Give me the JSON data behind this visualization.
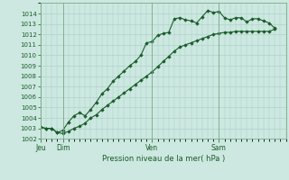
{
  "xlabel": "Pression niveau de la mer( hPa )",
  "ylim": [
    1002,
    1015
  ],
  "yticks": [
    1002,
    1003,
    1004,
    1005,
    1006,
    1007,
    1008,
    1009,
    1010,
    1011,
    1012,
    1013,
    1014
  ],
  "bg_color": "#cce8e0",
  "grid_color": "#aaccc4",
  "line_color": "#1a5c2a",
  "marker_color": "#1a5c2a",
  "day_labels": [
    "Jeu",
    "Dim",
    "Ven",
    "Sam"
  ],
  "day_positions": [
    0,
    24,
    120,
    192
  ],
  "xlim": [
    0,
    264
  ],
  "series1_x": [
    0,
    6,
    12,
    18,
    24,
    30,
    36,
    42,
    48,
    54,
    60,
    66,
    72,
    78,
    84,
    90,
    96,
    102,
    108,
    114,
    120,
    126,
    132,
    138,
    144,
    150,
    156,
    162,
    168,
    174,
    180,
    186,
    192,
    198,
    204,
    210,
    216,
    222,
    228,
    234,
    240,
    246,
    252
  ],
  "series1_y": [
    1003.1,
    1003.0,
    1003.0,
    1002.6,
    1002.8,
    1003.6,
    1004.2,
    1004.5,
    1004.2,
    1004.8,
    1005.5,
    1006.3,
    1006.8,
    1007.5,
    1008.0,
    1008.5,
    1009.0,
    1009.4,
    1010.0,
    1011.2,
    1011.3,
    1011.9,
    1012.1,
    1012.2,
    1013.5,
    1013.6,
    1013.4,
    1013.3,
    1013.1,
    1013.7,
    1014.3,
    1014.1,
    1014.2,
    1013.6,
    1013.4,
    1013.6,
    1013.6,
    1013.2,
    1013.5,
    1013.5,
    1013.3,
    1013.1,
    1012.6
  ],
  "series2_x": [
    0,
    6,
    12,
    18,
    24,
    30,
    36,
    42,
    48,
    54,
    60,
    66,
    72,
    78,
    84,
    90,
    96,
    102,
    108,
    114,
    120,
    126,
    132,
    138,
    144,
    150,
    156,
    162,
    168,
    174,
    180,
    186,
    192,
    198,
    204,
    210,
    216,
    222,
    228,
    234,
    240,
    246,
    252
  ],
  "series2_y": [
    1003.1,
    1003.0,
    1003.0,
    1002.6,
    1002.5,
    1002.7,
    1003.0,
    1003.2,
    1003.5,
    1004.0,
    1004.3,
    1004.8,
    1005.2,
    1005.6,
    1006.0,
    1006.4,
    1006.8,
    1007.2,
    1007.6,
    1008.0,
    1008.4,
    1008.9,
    1009.4,
    1009.9,
    1010.4,
    1010.8,
    1011.0,
    1011.2,
    1011.4,
    1011.6,
    1011.8,
    1012.0,
    1012.1,
    1012.2,
    1012.2,
    1012.3,
    1012.3,
    1012.3,
    1012.3,
    1012.3,
    1012.3,
    1012.3,
    1012.5
  ]
}
